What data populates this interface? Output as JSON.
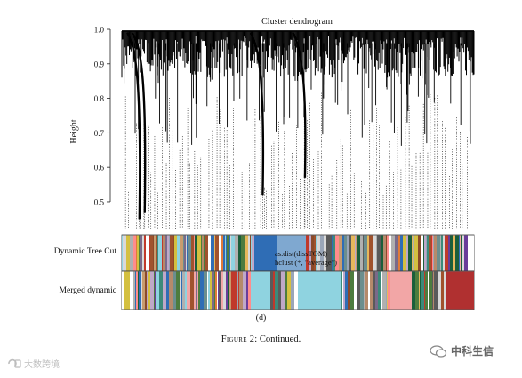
{
  "chart_data": {
    "type": "dendrogram",
    "title": "Cluster dendrogram",
    "ylabel": "Height",
    "xlabel": "",
    "ylim": [
      0.42,
      1.0
    ],
    "yticks": [
      0.5,
      0.6,
      0.7,
      0.8,
      0.9,
      1.0
    ],
    "ytick_labels": [
      "0.5",
      "0.6",
      "0.7",
      "0.8",
      "0.9",
      "1.0"
    ],
    "color_rows": [
      {
        "name": "Dynamic Tree Cut"
      },
      {
        "name": "Merged dynamic"
      }
    ],
    "annotation_lines": [
      "as.dist(dissTOM)",
      "hclust (*, \"average\")"
    ],
    "panel_label": "(d)",
    "deep_branches": [
      {
        "x": 0.05,
        "min_height": 0.45
      },
      {
        "x": 0.065,
        "min_height": 0.47
      },
      {
        "x": 0.4,
        "min_height": 0.52
      },
      {
        "x": 0.52,
        "min_height": 0.57
      }
    ],
    "palette": [
      "#d9d9d9",
      "#c89c6e",
      "#8b4a2a",
      "#6b8e8e",
      "#bfa8c8",
      "#9aa6b8",
      "#b58a6b",
      "#7a6a8a",
      "#e6b85c",
      "#4d7c3e",
      "#c0392b",
      "#f2a6a6",
      "#2f6db5",
      "#8fd3e0",
      "#5a5a5a",
      "#a0522d",
      "#d4c040",
      "#1a5e3a",
      "#e07b39",
      "#ffffff",
      "#b0b0b0",
      "#6a3d9a",
      "#ff8c8c",
      "#3c8a7a"
    ]
  },
  "caption": {
    "figure": "Figure 2",
    "text": ": Continued."
  },
  "watermark": {
    "left": "大数跨境",
    "right": "中科生信"
  }
}
